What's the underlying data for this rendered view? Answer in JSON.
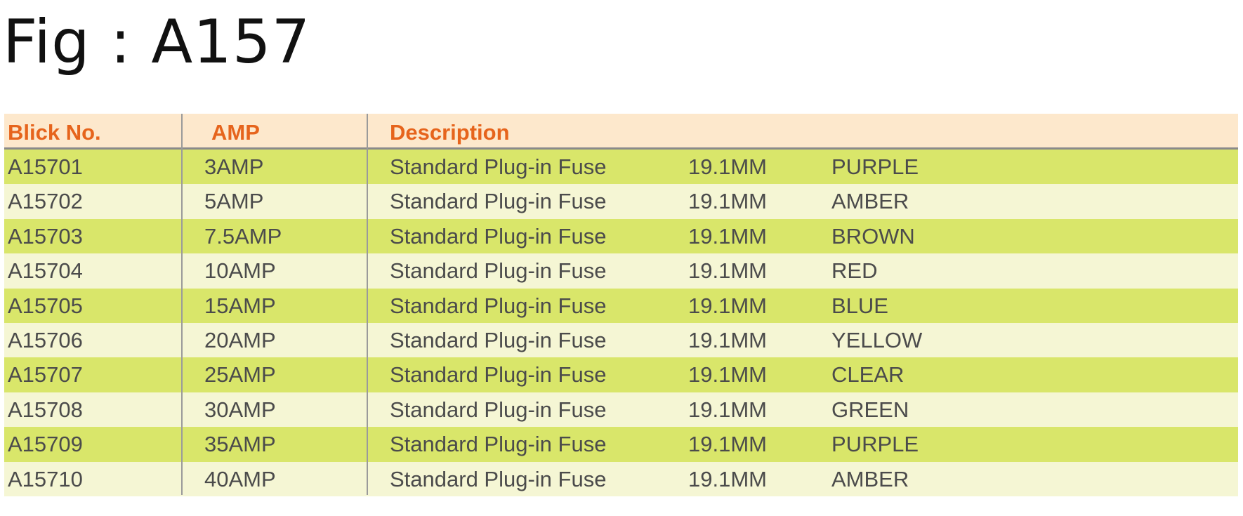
{
  "title": "Fig : A157",
  "colors": {
    "header_text": "#e6641c",
    "header_bg": "#fde8cc",
    "row_green": "#d9e66a",
    "row_light": "#f5f6d4",
    "text": "#4b4b4b"
  },
  "headers": {
    "blick": "Blick No.",
    "amp": "AMP",
    "description": "Description"
  },
  "rows": [
    {
      "blick": "A15701",
      "amp": "3AMP",
      "desc": "Standard Plug-in Fuse",
      "size": "19.1MM",
      "color": "PURPLE"
    },
    {
      "blick": "A15702",
      "amp": "5AMP",
      "desc": "Standard Plug-in Fuse",
      "size": "19.1MM",
      "color": "AMBER"
    },
    {
      "blick": "A15703",
      "amp": "7.5AMP",
      "desc": "Standard Plug-in Fuse",
      "size": "19.1MM",
      "color": "BROWN"
    },
    {
      "blick": "A15704",
      "amp": "10AMP",
      "desc": "Standard Plug-in Fuse",
      "size": "19.1MM",
      "color": "RED"
    },
    {
      "blick": "A15705",
      "amp": "15AMP",
      "desc": "Standard Plug-in Fuse",
      "size": "19.1MM",
      "color": "BLUE"
    },
    {
      "blick": "A15706",
      "amp": "20AMP",
      "desc": "Standard Plug-in Fuse",
      "size": "19.1MM",
      "color": "YELLOW"
    },
    {
      "blick": "A15707",
      "amp": "25AMP",
      "desc": "Standard Plug-in Fuse",
      "size": "19.1MM",
      "color": "CLEAR"
    },
    {
      "blick": "A15708",
      "amp": "30AMP",
      "desc": "Standard Plug-in Fuse",
      "size": "19.1MM",
      "color": "GREEN"
    },
    {
      "blick": "A15709",
      "amp": "35AMP",
      "desc": "Standard Plug-in Fuse",
      "size": "19.1MM",
      "color": "PURPLE"
    },
    {
      "blick": "A15710",
      "amp": "40AMP",
      "desc": "Standard Plug-in Fuse",
      "size": "19.1MM",
      "color": "AMBER"
    }
  ]
}
